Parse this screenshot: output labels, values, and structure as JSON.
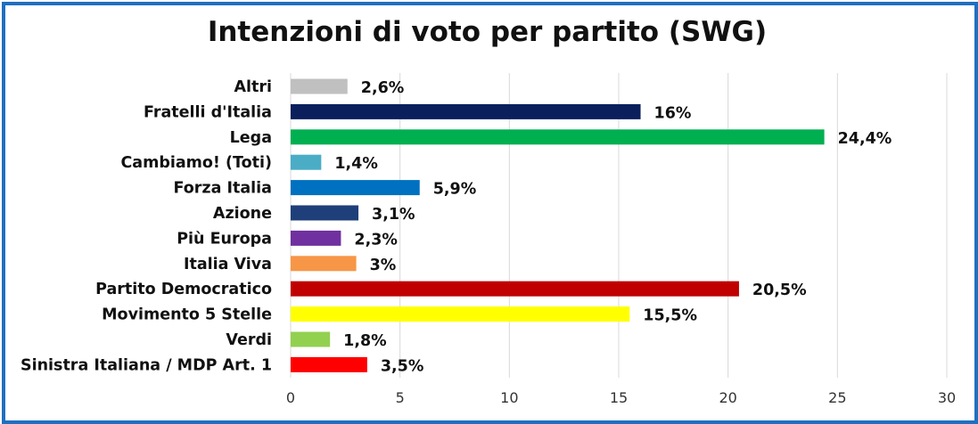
{
  "chart_data": {
    "type": "bar",
    "orientation": "horizontal",
    "title": "Intenzioni di voto per partito (SWG)",
    "xlabel": "",
    "ylabel": "",
    "xlim": [
      0,
      30
    ],
    "ticks": [
      0,
      5,
      10,
      15,
      20,
      25,
      30
    ],
    "grid": true,
    "categories": [
      "Altri",
      "Fratelli d'Italia",
      "Lega",
      "Cambiamo! (Toti)",
      "Forza Italia",
      "Azione",
      "Più Europa",
      "Italia Viva",
      "Partito Democratico",
      "Movimento 5 Stelle",
      "Verdi",
      "Sinistra Italiana / MDP Art. 1"
    ],
    "values": [
      2.6,
      16,
      24.4,
      1.4,
      5.9,
      3.1,
      2.3,
      3,
      20.5,
      15.5,
      1.8,
      3.5
    ],
    "value_labels": [
      "2,6%",
      "16%",
      "24,4%",
      "1,4%",
      "5,9%",
      "3,1%",
      "2,3%",
      "3%",
      "20,5%",
      "15,5%",
      "1,8%",
      "3,5%"
    ],
    "colors": [
      "#c0c0c0",
      "#0a1f5c",
      "#00b050",
      "#4bacc6",
      "#0070c0",
      "#1f3f7a",
      "#7030a0",
      "#f79646",
      "#c00000",
      "#ffff00",
      "#92d050",
      "#ff0000"
    ]
  },
  "frame": {
    "border_color": "#1f6fc0"
  }
}
